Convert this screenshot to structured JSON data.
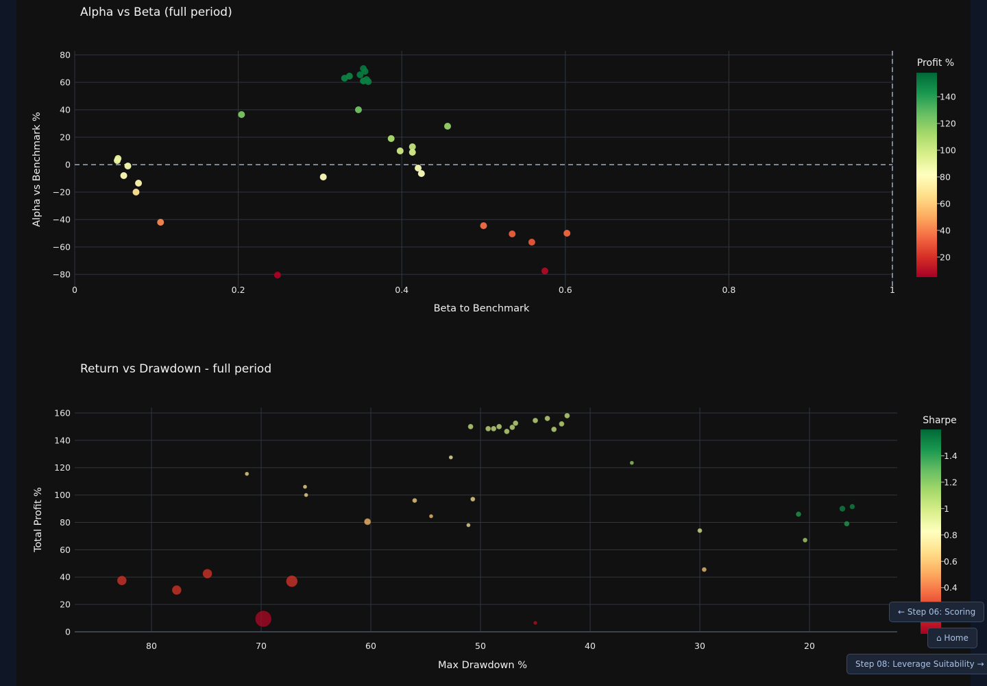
{
  "chart_data": [
    {
      "type": "scatter",
      "title": "Alpha vs Beta (full period)",
      "xlabel": "Beta to Benchmark",
      "ylabel": "Alpha vs Benchmark %",
      "xlim": [
        0,
        1
      ],
      "ylim": [
        -90,
        83
      ],
      "xticks": [
        0,
        0.2,
        0.4,
        0.6,
        0.8,
        1
      ],
      "xtick_labels": [
        "0",
        "0.2",
        "0.4",
        "0.6",
        "0.8",
        "1"
      ],
      "yticks": [
        80,
        60,
        40,
        20,
        0,
        -20,
        -40,
        -60,
        -80
      ],
      "ytick_labels": [
        "80",
        "60",
        "40",
        "20",
        "0",
        "−20",
        "−40",
        "−60",
        "−80"
      ],
      "reference_lines": [
        "y=0 dashed",
        "x=1 dashed"
      ],
      "grid": true,
      "colorbar": {
        "title": "Profit %",
        "range": [
          5,
          158
        ],
        "ticks": [
          140,
          120,
          100,
          80,
          60,
          40,
          20
        ],
        "colorscale": "RdYlGn"
      },
      "points": [
        {
          "x": 0.052,
          "y": 3,
          "c": 88
        },
        {
          "x": 0.053,
          "y": 4.5,
          "c": 90
        },
        {
          "x": 0.065,
          "y": -1,
          "c": 86
        },
        {
          "x": 0.06,
          "y": -8,
          "c": 80
        },
        {
          "x": 0.078,
          "y": -13.5,
          "c": 78
        },
        {
          "x": 0.075,
          "y": -20,
          "c": 68
        },
        {
          "x": 0.105,
          "y": -42,
          "c": 42
        },
        {
          "x": 0.204,
          "y": 36.5,
          "c": 122
        },
        {
          "x": 0.248,
          "y": -80.5,
          "c": 6
        },
        {
          "x": 0.304,
          "y": -9,
          "c": 80
        },
        {
          "x": 0.33,
          "y": 63,
          "c": 150
        },
        {
          "x": 0.336,
          "y": 64.5,
          "c": 149
        },
        {
          "x": 0.347,
          "y": 40,
          "c": 124
        },
        {
          "x": 0.349,
          "y": 65.5,
          "c": 152
        },
        {
          "x": 0.353,
          "y": 70,
          "c": 154
        },
        {
          "x": 0.355,
          "y": 68,
          "c": 153
        },
        {
          "x": 0.353,
          "y": 61,
          "c": 150
        },
        {
          "x": 0.357,
          "y": 62,
          "c": 152
        },
        {
          "x": 0.359,
          "y": 60.5,
          "c": 151
        },
        {
          "x": 0.387,
          "y": 19,
          "c": 110
        },
        {
          "x": 0.398,
          "y": 10,
          "c": 100
        },
        {
          "x": 0.413,
          "y": 13,
          "c": 104
        },
        {
          "x": 0.413,
          "y": 9,
          "c": 98
        },
        {
          "x": 0.42,
          "y": -2.5,
          "c": 84
        },
        {
          "x": 0.424,
          "y": -6.5,
          "c": 82
        },
        {
          "x": 0.456,
          "y": 28,
          "c": 116
        },
        {
          "x": 0.5,
          "y": -44.5,
          "c": 36
        },
        {
          "x": 0.535,
          "y": -50.5,
          "c": 32
        },
        {
          "x": 0.602,
          "y": -50,
          "c": 34
        },
        {
          "x": 0.559,
          "y": -56.5,
          "c": 30
        },
        {
          "x": 0.575,
          "y": -77.5,
          "c": 8
        }
      ]
    },
    {
      "type": "scatter",
      "title": "Return vs Drawdown - full period",
      "xlabel": "Max Drawdown %",
      "ylabel": "Total Profit %",
      "xlim": [
        87,
        12
      ],
      "ylim": [
        0,
        164
      ],
      "x_reversed": true,
      "xticks": [
        80,
        70,
        60,
        50,
        40,
        30,
        20
      ],
      "xtick_labels": [
        "80",
        "70",
        "60",
        "50",
        "40",
        "30",
        "20"
      ],
      "yticks": [
        160,
        140,
        120,
        100,
        80,
        60,
        40,
        20,
        0
      ],
      "ytick_labels": [
        "160",
        "140",
        "120",
        "100",
        "80",
        "60",
        "40",
        "20",
        "0"
      ],
      "grid": true,
      "colorbar": {
        "title": "Sharpe",
        "range": [
          0.05,
          1.6
        ],
        "ticks": [
          1.4,
          1.2,
          1,
          0.8,
          0.6,
          0.4
        ],
        "tick_labels": [
          "1.4",
          "1.2",
          "1",
          "0.8",
          "0.6",
          "0.4"
        ],
        "colorscale": "RdYlGn"
      },
      "points": [
        {
          "x": 82.7,
          "y": 37.5,
          "c": 0.22,
          "s": 7
        },
        {
          "x": 77.7,
          "y": 30.5,
          "c": 0.22,
          "s": 7
        },
        {
          "x": 74.9,
          "y": 42.5,
          "c": 0.22,
          "s": 7
        },
        {
          "x": 67.2,
          "y": 37,
          "c": 0.22,
          "s": 8.5
        },
        {
          "x": 69.8,
          "y": 9.5,
          "c": 0.08,
          "s": 12
        },
        {
          "x": 71.3,
          "y": 115.5,
          "c": 0.7,
          "s": 3
        },
        {
          "x": 66.0,
          "y": 106,
          "c": 0.7,
          "s": 3
        },
        {
          "x": 65.9,
          "y": 100,
          "c": 0.7,
          "s": 3
        },
        {
          "x": 60.3,
          "y": 80.5,
          "c": 0.58,
          "s": 5
        },
        {
          "x": 56.0,
          "y": 96,
          "c": 0.66,
          "s": 3.5
        },
        {
          "x": 54.5,
          "y": 84.5,
          "c": 0.6,
          "s": 3
        },
        {
          "x": 52.7,
          "y": 127.5,
          "c": 0.78,
          "s": 3
        },
        {
          "x": 51.1,
          "y": 78,
          "c": 0.72,
          "s": 3
        },
        {
          "x": 50.7,
          "y": 97,
          "c": 0.7,
          "s": 3.5
        },
        {
          "x": 50.9,
          "y": 150,
          "c": 1.0,
          "s": 4
        },
        {
          "x": 49.3,
          "y": 148.5,
          "c": 1.0,
          "s": 4
        },
        {
          "x": 48.8,
          "y": 148.5,
          "c": 1.0,
          "s": 4
        },
        {
          "x": 48.3,
          "y": 150,
          "c": 1.0,
          "s": 4
        },
        {
          "x": 47.6,
          "y": 146.5,
          "c": 1.0,
          "s": 4
        },
        {
          "x": 47.1,
          "y": 149.5,
          "c": 1.0,
          "s": 4
        },
        {
          "x": 46.8,
          "y": 152.5,
          "c": 1.0,
          "s": 4
        },
        {
          "x": 45.0,
          "y": 154.5,
          "c": 1.0,
          "s": 4
        },
        {
          "x": 43.9,
          "y": 156,
          "c": 1.0,
          "s": 4
        },
        {
          "x": 43.3,
          "y": 148,
          "c": 1.0,
          "s": 4
        },
        {
          "x": 42.6,
          "y": 152,
          "c": 1.0,
          "s": 4
        },
        {
          "x": 42.1,
          "y": 158,
          "c": 1.0,
          "s": 4
        },
        {
          "x": 45.0,
          "y": 6.5,
          "c": 0.1,
          "s": 3
        },
        {
          "x": 36.2,
          "y": 123.5,
          "c": 1.15,
          "s": 3
        },
        {
          "x": 30.0,
          "y": 74,
          "c": 0.95,
          "s": 3.5
        },
        {
          "x": 29.6,
          "y": 45.5,
          "c": 0.6,
          "s": 3.5
        },
        {
          "x": 21.0,
          "y": 86,
          "c": 1.42,
          "s": 4
        },
        {
          "x": 20.4,
          "y": 67,
          "c": 1.1,
          "s": 3.5
        },
        {
          "x": 17.0,
          "y": 90,
          "c": 1.5,
          "s": 4.5
        },
        {
          "x": 16.6,
          "y": 79,
          "c": 1.42,
          "s": 4
        },
        {
          "x": 16.1,
          "y": 91.5,
          "c": 1.5,
          "s": 4
        }
      ]
    }
  ],
  "nav": {
    "prev": "← Step 06: Scoring",
    "home": "⌂ Home",
    "next": "Step 08: Leverage Suitability →"
  }
}
